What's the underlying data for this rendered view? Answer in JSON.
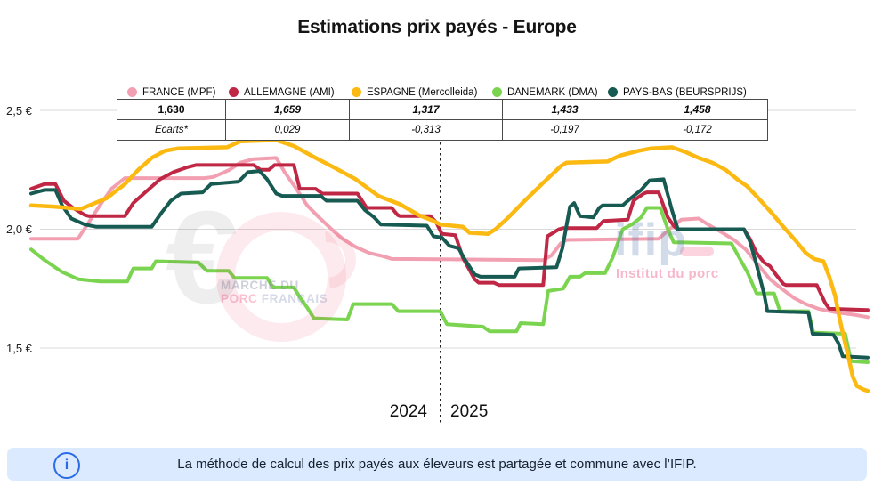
{
  "title": "Estimations prix payés - Europe",
  "legend": [
    {
      "label": "FRANCE (MPF)",
      "color": "#f2a0b1"
    },
    {
      "label": "ALLEMAGNE (AMI)",
      "color": "#bf2745"
    },
    {
      "label": "ESPAGNE (Mercolleida)",
      "color": "#fcb912"
    },
    {
      "label": "DANEMARK (DMA)",
      "color": "#7bd44f"
    },
    {
      "label": "PAYS-BAS (BEURSPRIJS)",
      "color": "#175a52"
    }
  ],
  "table": {
    "values": [
      "1,630",
      "1,659",
      "1,317",
      "1,433",
      "1,458"
    ],
    "ecarts": [
      "Ecarts*",
      "0,029",
      "-0,313",
      "-0,197",
      "-0,172"
    ]
  },
  "axis": {
    "y_ticks": [
      "2,5 €",
      "2,0 €",
      "1,5 €"
    ],
    "x_labels": [
      "2024",
      "2025"
    ]
  },
  "watermarks": {
    "mpf": {
      "symbol": "€",
      "line1": "MARCHÉ DU",
      "line2_pink": "PORC",
      "line2_gray": "FRANÇAIS"
    },
    "ifip": {
      "logo": "ifip",
      "subtitle": "Institut du porc"
    }
  },
  "footer": {
    "icon_glyph": "i",
    "text": "La méthode de calcul des prix payés aux éleveurs est partagée et commune avec l’IFIP."
  },
  "chart_data": {
    "type": "line",
    "title": "Estimations prix payés - Europe",
    "ylabel": "€",
    "ylim": [
      1.25,
      2.55
    ],
    "y_gridlines": [
      2.5,
      2.0,
      1.5
    ],
    "divider_pct": 48.9,
    "divider_labels": [
      "2024",
      "2025"
    ],
    "legend_position": "top",
    "grid": true,
    "x_unit": "percent of plot width (weekly series, 2024 then 2025)",
    "final_values": {
      "FRANCE (MPF)": 1.63,
      "ALLEMAGNE (AMI)": 1.659,
      "ESPAGNE (Mercolleida)": 1.317,
      "DANEMARK (DMA)": 1.433,
      "PAYS-BAS (BEURSPRIJS)": 1.458
    },
    "ecarts_vs_france": {
      "ALLEMAGNE (AMI)": 0.029,
      "ESPAGNE (Mercolleida)": -0.313,
      "DANEMARK (DMA)": -0.197,
      "PAYS-BAS (BEURSPRIJS)": -0.172
    },
    "series": [
      {
        "name": "FRANCE (MPF)",
        "color": "#f2a0b1",
        "width": 4,
        "points": [
          [
            0,
            1.96
          ],
          [
            5.6,
            1.96
          ],
          [
            6.9,
            2.03
          ],
          [
            8.2,
            2.1
          ],
          [
            9.6,
            2.17
          ],
          [
            11.2,
            2.215
          ],
          [
            20.7,
            2.215
          ],
          [
            21.8,
            2.22
          ],
          [
            23.7,
            2.25
          ],
          [
            25.0,
            2.28
          ],
          [
            26.6,
            2.295
          ],
          [
            29.3,
            2.3
          ],
          [
            30.3,
            2.24
          ],
          [
            31.7,
            2.17
          ],
          [
            33.0,
            2.1
          ],
          [
            34.4,
            2.05
          ],
          [
            35.9,
            2.0
          ],
          [
            37.2,
            1.96
          ],
          [
            38.8,
            1.925
          ],
          [
            40.4,
            1.9
          ],
          [
            42.2,
            1.885
          ],
          [
            43.1,
            1.875
          ],
          [
            61.2,
            1.87
          ],
          [
            62.2,
            1.89
          ],
          [
            63.3,
            1.94
          ],
          [
            64.0,
            1.955
          ],
          [
            75.0,
            1.96
          ],
          [
            76.3,
            2.0
          ],
          [
            77.7,
            2.04
          ],
          [
            79.8,
            2.045
          ],
          [
            80.9,
            2.02
          ],
          [
            82.4,
            1.99
          ],
          [
            84.0,
            1.955
          ],
          [
            85.4,
            1.915
          ],
          [
            86.9,
            1.85
          ],
          [
            88.3,
            1.79
          ],
          [
            89.7,
            1.75
          ],
          [
            91.2,
            1.71
          ],
          [
            92.6,
            1.685
          ],
          [
            94.1,
            1.665
          ],
          [
            96.3,
            1.65
          ],
          [
            98.4,
            1.64
          ],
          [
            100,
            1.63
          ]
        ]
      },
      {
        "name": "DANEMARK (DMA)",
        "color": "#7bd44f",
        "width": 4,
        "points": [
          [
            0,
            1.915
          ],
          [
            1.6,
            1.87
          ],
          [
            3.7,
            1.82
          ],
          [
            5.6,
            1.79
          ],
          [
            8.3,
            1.78
          ],
          [
            11.5,
            1.78
          ],
          [
            12.2,
            1.835
          ],
          [
            14.4,
            1.835
          ],
          [
            14.9,
            1.865
          ],
          [
            20.0,
            1.86
          ],
          [
            21.0,
            1.825
          ],
          [
            23.6,
            1.825
          ],
          [
            24.3,
            1.795
          ],
          [
            28.2,
            1.795
          ],
          [
            28.9,
            1.755
          ],
          [
            31.4,
            1.755
          ],
          [
            32.1,
            1.715
          ],
          [
            33.0,
            1.67
          ],
          [
            33.8,
            1.625
          ],
          [
            37.8,
            1.62
          ],
          [
            38.5,
            1.685
          ],
          [
            43.1,
            1.685
          ],
          [
            43.9,
            1.655
          ],
          [
            48.9,
            1.655
          ],
          [
            49.7,
            1.6
          ],
          [
            54.0,
            1.59
          ],
          [
            54.8,
            1.57
          ],
          [
            58.0,
            1.57
          ],
          [
            58.5,
            1.605
          ],
          [
            61.2,
            1.6
          ],
          [
            61.8,
            1.74
          ],
          [
            63.6,
            1.75
          ],
          [
            64.4,
            1.8
          ],
          [
            65.6,
            1.8
          ],
          [
            66.2,
            1.815
          ],
          [
            68.6,
            1.815
          ],
          [
            69.5,
            1.88
          ],
          [
            70.7,
            2.0
          ],
          [
            71.8,
            2.02
          ],
          [
            72.9,
            2.05
          ],
          [
            73.6,
            2.09
          ],
          [
            75.2,
            2.09
          ],
          [
            76.1,
            2.0
          ],
          [
            76.8,
            1.945
          ],
          [
            83.7,
            1.94
          ],
          [
            84.8,
            1.87
          ],
          [
            85.6,
            1.82
          ],
          [
            86.7,
            1.73
          ],
          [
            88.8,
            1.73
          ],
          [
            89.5,
            1.655
          ],
          [
            92.9,
            1.655
          ],
          [
            93.5,
            1.565
          ],
          [
            97.3,
            1.56
          ],
          [
            98.0,
            1.445
          ],
          [
            100,
            1.44
          ]
        ]
      },
      {
        "name": "ALLEMAGNE (AMI)",
        "color": "#bf2745",
        "width": 4,
        "points": [
          [
            0,
            2.17
          ],
          [
            1.6,
            2.19
          ],
          [
            2.9,
            2.19
          ],
          [
            3.9,
            2.12
          ],
          [
            5.0,
            2.09
          ],
          [
            6.4,
            2.06
          ],
          [
            6.9,
            2.055
          ],
          [
            11.2,
            2.055
          ],
          [
            12.2,
            2.11
          ],
          [
            13.8,
            2.16
          ],
          [
            15.4,
            2.21
          ],
          [
            17.0,
            2.24
          ],
          [
            18.6,
            2.26
          ],
          [
            19.7,
            2.27
          ],
          [
            26.6,
            2.27
          ],
          [
            27.4,
            2.25
          ],
          [
            28.4,
            2.25
          ],
          [
            29.1,
            2.27
          ],
          [
            31.4,
            2.27
          ],
          [
            32.1,
            2.17
          ],
          [
            34.0,
            2.17
          ],
          [
            34.8,
            2.15
          ],
          [
            39.0,
            2.15
          ],
          [
            40.1,
            2.09
          ],
          [
            43.1,
            2.09
          ],
          [
            43.8,
            2.06
          ],
          [
            44.1,
            2.055
          ],
          [
            47.7,
            2.055
          ],
          [
            48.4,
            2.03
          ],
          [
            49.1,
            1.98
          ],
          [
            50.7,
            1.975
          ],
          [
            51.6,
            1.88
          ],
          [
            53.0,
            1.79
          ],
          [
            53.5,
            1.775
          ],
          [
            55.3,
            1.775
          ],
          [
            55.9,
            1.765
          ],
          [
            61.2,
            1.765
          ],
          [
            61.7,
            1.97
          ],
          [
            62.4,
            1.985
          ],
          [
            63.1,
            2.0
          ],
          [
            63.6,
            2.005
          ],
          [
            67.6,
            2.005
          ],
          [
            68.4,
            2.035
          ],
          [
            71.3,
            2.04
          ],
          [
            72.0,
            2.12
          ],
          [
            73.2,
            2.15
          ],
          [
            73.6,
            2.155
          ],
          [
            75.0,
            2.155
          ],
          [
            76.1,
            2.05
          ],
          [
            76.9,
            2.01
          ],
          [
            77.3,
            2.0
          ],
          [
            85.2,
            2.0
          ],
          [
            85.9,
            1.96
          ],
          [
            86.7,
            1.9
          ],
          [
            87.6,
            1.86
          ],
          [
            88.3,
            1.845
          ],
          [
            89.0,
            1.81
          ],
          [
            89.9,
            1.77
          ],
          [
            90.2,
            1.765
          ],
          [
            93.9,
            1.765
          ],
          [
            94.9,
            1.69
          ],
          [
            95.4,
            1.665
          ],
          [
            100,
            1.66
          ]
        ]
      },
      {
        "name": "PAYS-BAS (BEURSPRIJS)",
        "color": "#175a52",
        "width": 4,
        "points": [
          [
            0,
            2.15
          ],
          [
            1.6,
            2.165
          ],
          [
            2.9,
            2.165
          ],
          [
            3.7,
            2.1
          ],
          [
            4.8,
            2.045
          ],
          [
            6.4,
            2.02
          ],
          [
            7.8,
            2.01
          ],
          [
            14.4,
            2.01
          ],
          [
            15.6,
            2.07
          ],
          [
            16.7,
            2.12
          ],
          [
            17.9,
            2.15
          ],
          [
            20.5,
            2.155
          ],
          [
            21.5,
            2.19
          ],
          [
            24.8,
            2.2
          ],
          [
            25.9,
            2.24
          ],
          [
            27.3,
            2.245
          ],
          [
            28.2,
            2.21
          ],
          [
            29.3,
            2.15
          ],
          [
            30.0,
            2.14
          ],
          [
            34.6,
            2.14
          ],
          [
            35.3,
            2.12
          ],
          [
            39.0,
            2.12
          ],
          [
            39.9,
            2.08
          ],
          [
            41.0,
            2.05
          ],
          [
            41.8,
            2.02
          ],
          [
            47.3,
            2.015
          ],
          [
            48.1,
            1.97
          ],
          [
            49.1,
            1.965
          ],
          [
            50.0,
            1.93
          ],
          [
            51.1,
            1.92
          ],
          [
            51.8,
            1.875
          ],
          [
            53.0,
            1.81
          ],
          [
            53.7,
            1.8
          ],
          [
            57.8,
            1.8
          ],
          [
            58.3,
            1.835
          ],
          [
            62.8,
            1.84
          ],
          [
            63.5,
            1.92
          ],
          [
            64.4,
            2.095
          ],
          [
            64.9,
            2.11
          ],
          [
            65.6,
            2.055
          ],
          [
            67.2,
            2.05
          ],
          [
            67.9,
            2.09
          ],
          [
            68.3,
            2.1
          ],
          [
            70.7,
            2.1
          ],
          [
            71.5,
            2.125
          ],
          [
            72.9,
            2.165
          ],
          [
            73.9,
            2.205
          ],
          [
            75.6,
            2.21
          ],
          [
            76.6,
            2.08
          ],
          [
            77.3,
            2.0
          ],
          [
            85.2,
            2.0
          ],
          [
            85.9,
            1.95
          ],
          [
            86.7,
            1.85
          ],
          [
            87.6,
            1.73
          ],
          [
            88.0,
            1.655
          ],
          [
            92.9,
            1.65
          ],
          [
            93.4,
            1.56
          ],
          [
            95.9,
            1.555
          ],
          [
            96.5,
            1.52
          ],
          [
            97.0,
            1.465
          ],
          [
            100,
            1.46
          ]
        ]
      },
      {
        "name": "ESPAGNE (Mercolleida)",
        "color": "#fcb912",
        "width": 4.5,
        "points": [
          [
            0,
            2.1
          ],
          [
            2.7,
            2.095
          ],
          [
            5.9,
            2.085
          ],
          [
            9.0,
            2.13
          ],
          [
            11.2,
            2.19
          ],
          [
            12.8,
            2.25
          ],
          [
            14.4,
            2.3
          ],
          [
            16.0,
            2.33
          ],
          [
            17.6,
            2.34
          ],
          [
            23.4,
            2.345
          ],
          [
            25.0,
            2.37
          ],
          [
            29.3,
            2.375
          ],
          [
            31.4,
            2.35
          ],
          [
            34.0,
            2.3
          ],
          [
            36.2,
            2.26
          ],
          [
            38.8,
            2.21
          ],
          [
            41.5,
            2.14
          ],
          [
            44.1,
            2.105
          ],
          [
            46.3,
            2.06
          ],
          [
            48.1,
            2.035
          ],
          [
            48.9,
            2.02
          ],
          [
            51.6,
            2.01
          ],
          [
            52.4,
            1.985
          ],
          [
            54.6,
            1.98
          ],
          [
            55.5,
            2.0
          ],
          [
            56.9,
            2.045
          ],
          [
            59.0,
            2.12
          ],
          [
            61.2,
            2.195
          ],
          [
            63.3,
            2.265
          ],
          [
            64.0,
            2.28
          ],
          [
            68.9,
            2.285
          ],
          [
            70.4,
            2.31
          ],
          [
            72.6,
            2.33
          ],
          [
            74.1,
            2.34
          ],
          [
            76.6,
            2.345
          ],
          [
            78.2,
            2.325
          ],
          [
            79.8,
            2.3
          ],
          [
            81.4,
            2.28
          ],
          [
            83.0,
            2.25
          ],
          [
            84.4,
            2.21
          ],
          [
            85.6,
            2.18
          ],
          [
            87.2,
            2.12
          ],
          [
            88.6,
            2.065
          ],
          [
            89.9,
            2.01
          ],
          [
            91.3,
            1.955
          ],
          [
            92.6,
            1.9
          ],
          [
            93.6,
            1.875
          ],
          [
            94.7,
            1.865
          ],
          [
            95.4,
            1.8
          ],
          [
            96.1,
            1.72
          ],
          [
            96.6,
            1.63
          ],
          [
            97.1,
            1.55
          ],
          [
            97.7,
            1.46
          ],
          [
            98.2,
            1.38
          ],
          [
            98.7,
            1.34
          ],
          [
            99.5,
            1.325
          ],
          [
            100,
            1.32
          ]
        ]
      }
    ]
  }
}
